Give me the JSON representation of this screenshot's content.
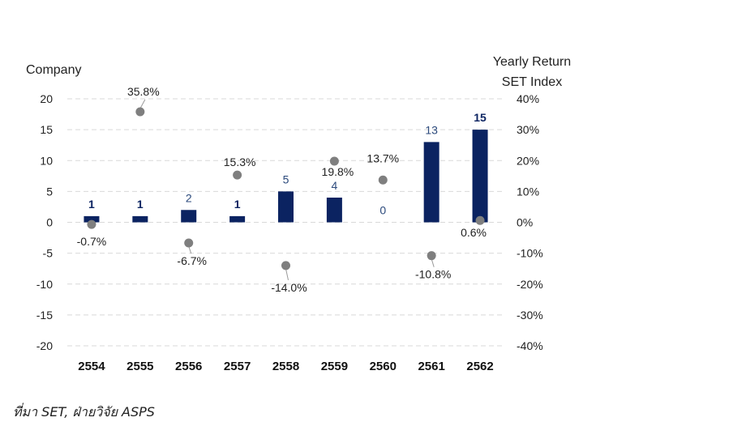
{
  "chart_data": {
    "type": "bar+scatter",
    "categories": [
      "2554",
      "2555",
      "2556",
      "2557",
      "2558",
      "2559",
      "2560",
      "2561",
      "2562"
    ],
    "series": [
      {
        "type": "bar",
        "axis": "left",
        "values": [
          1,
          1,
          2,
          1,
          5,
          4,
          0,
          13,
          15
        ],
        "labels": [
          "1",
          "1",
          "2",
          "1",
          "5",
          "4",
          "0",
          "13",
          "15"
        ],
        "color": "#0b2361"
      },
      {
        "type": "scatter",
        "axis": "right",
        "values": [
          -0.7,
          35.8,
          -6.7,
          15.3,
          -14.0,
          19.8,
          13.7,
          -10.8,
          0.6
        ],
        "labels": [
          "-0.7%",
          "35.8%",
          "-6.7%",
          "15.3%",
          "-14.0%",
          "19.8%",
          "13.7%",
          "-10.8%",
          "0.6%"
        ],
        "color": "#7f7f7f"
      }
    ],
    "left_axis": {
      "label": "Company",
      "ylim": [
        -20,
        20
      ],
      "ticks": [
        "20",
        "15",
        "10",
        "5",
        "0",
        "-5",
        "-10",
        "-15",
        "-20"
      ]
    },
    "right_axis": {
      "label_line1": "Yearly Return",
      "label_line2": "SET Index",
      "ylim": [
        -40,
        40
      ],
      "ticks": [
        "40%",
        "30%",
        "20%",
        "10%",
        "0%",
        "-10%",
        "-20%",
        "-30%",
        "-40%"
      ]
    },
    "grid": "dashed horizontal"
  },
  "source": "ที่มา SET, ฝ่ายวิจัย ASPS"
}
